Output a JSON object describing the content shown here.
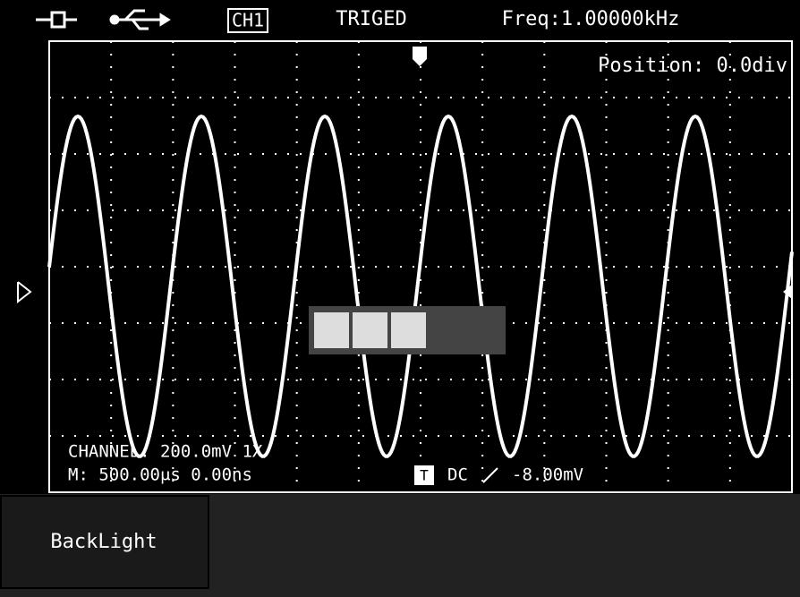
{
  "status_bar": {
    "channel": "CH1",
    "trigger_state": "TRIGED",
    "frequency": "Freq:1.00000kHz"
  },
  "screen": {
    "position": "Position: 0.0div",
    "channel_info": "CHANNEL: 200.0mV  1X",
    "timebase": "M: 500.00μs 0.00ns",
    "trigger_badge": "T",
    "trigger_coupling": "DC",
    "trigger_level": "-8.00mV"
  },
  "menu": {
    "button": "BackLight"
  }
}
